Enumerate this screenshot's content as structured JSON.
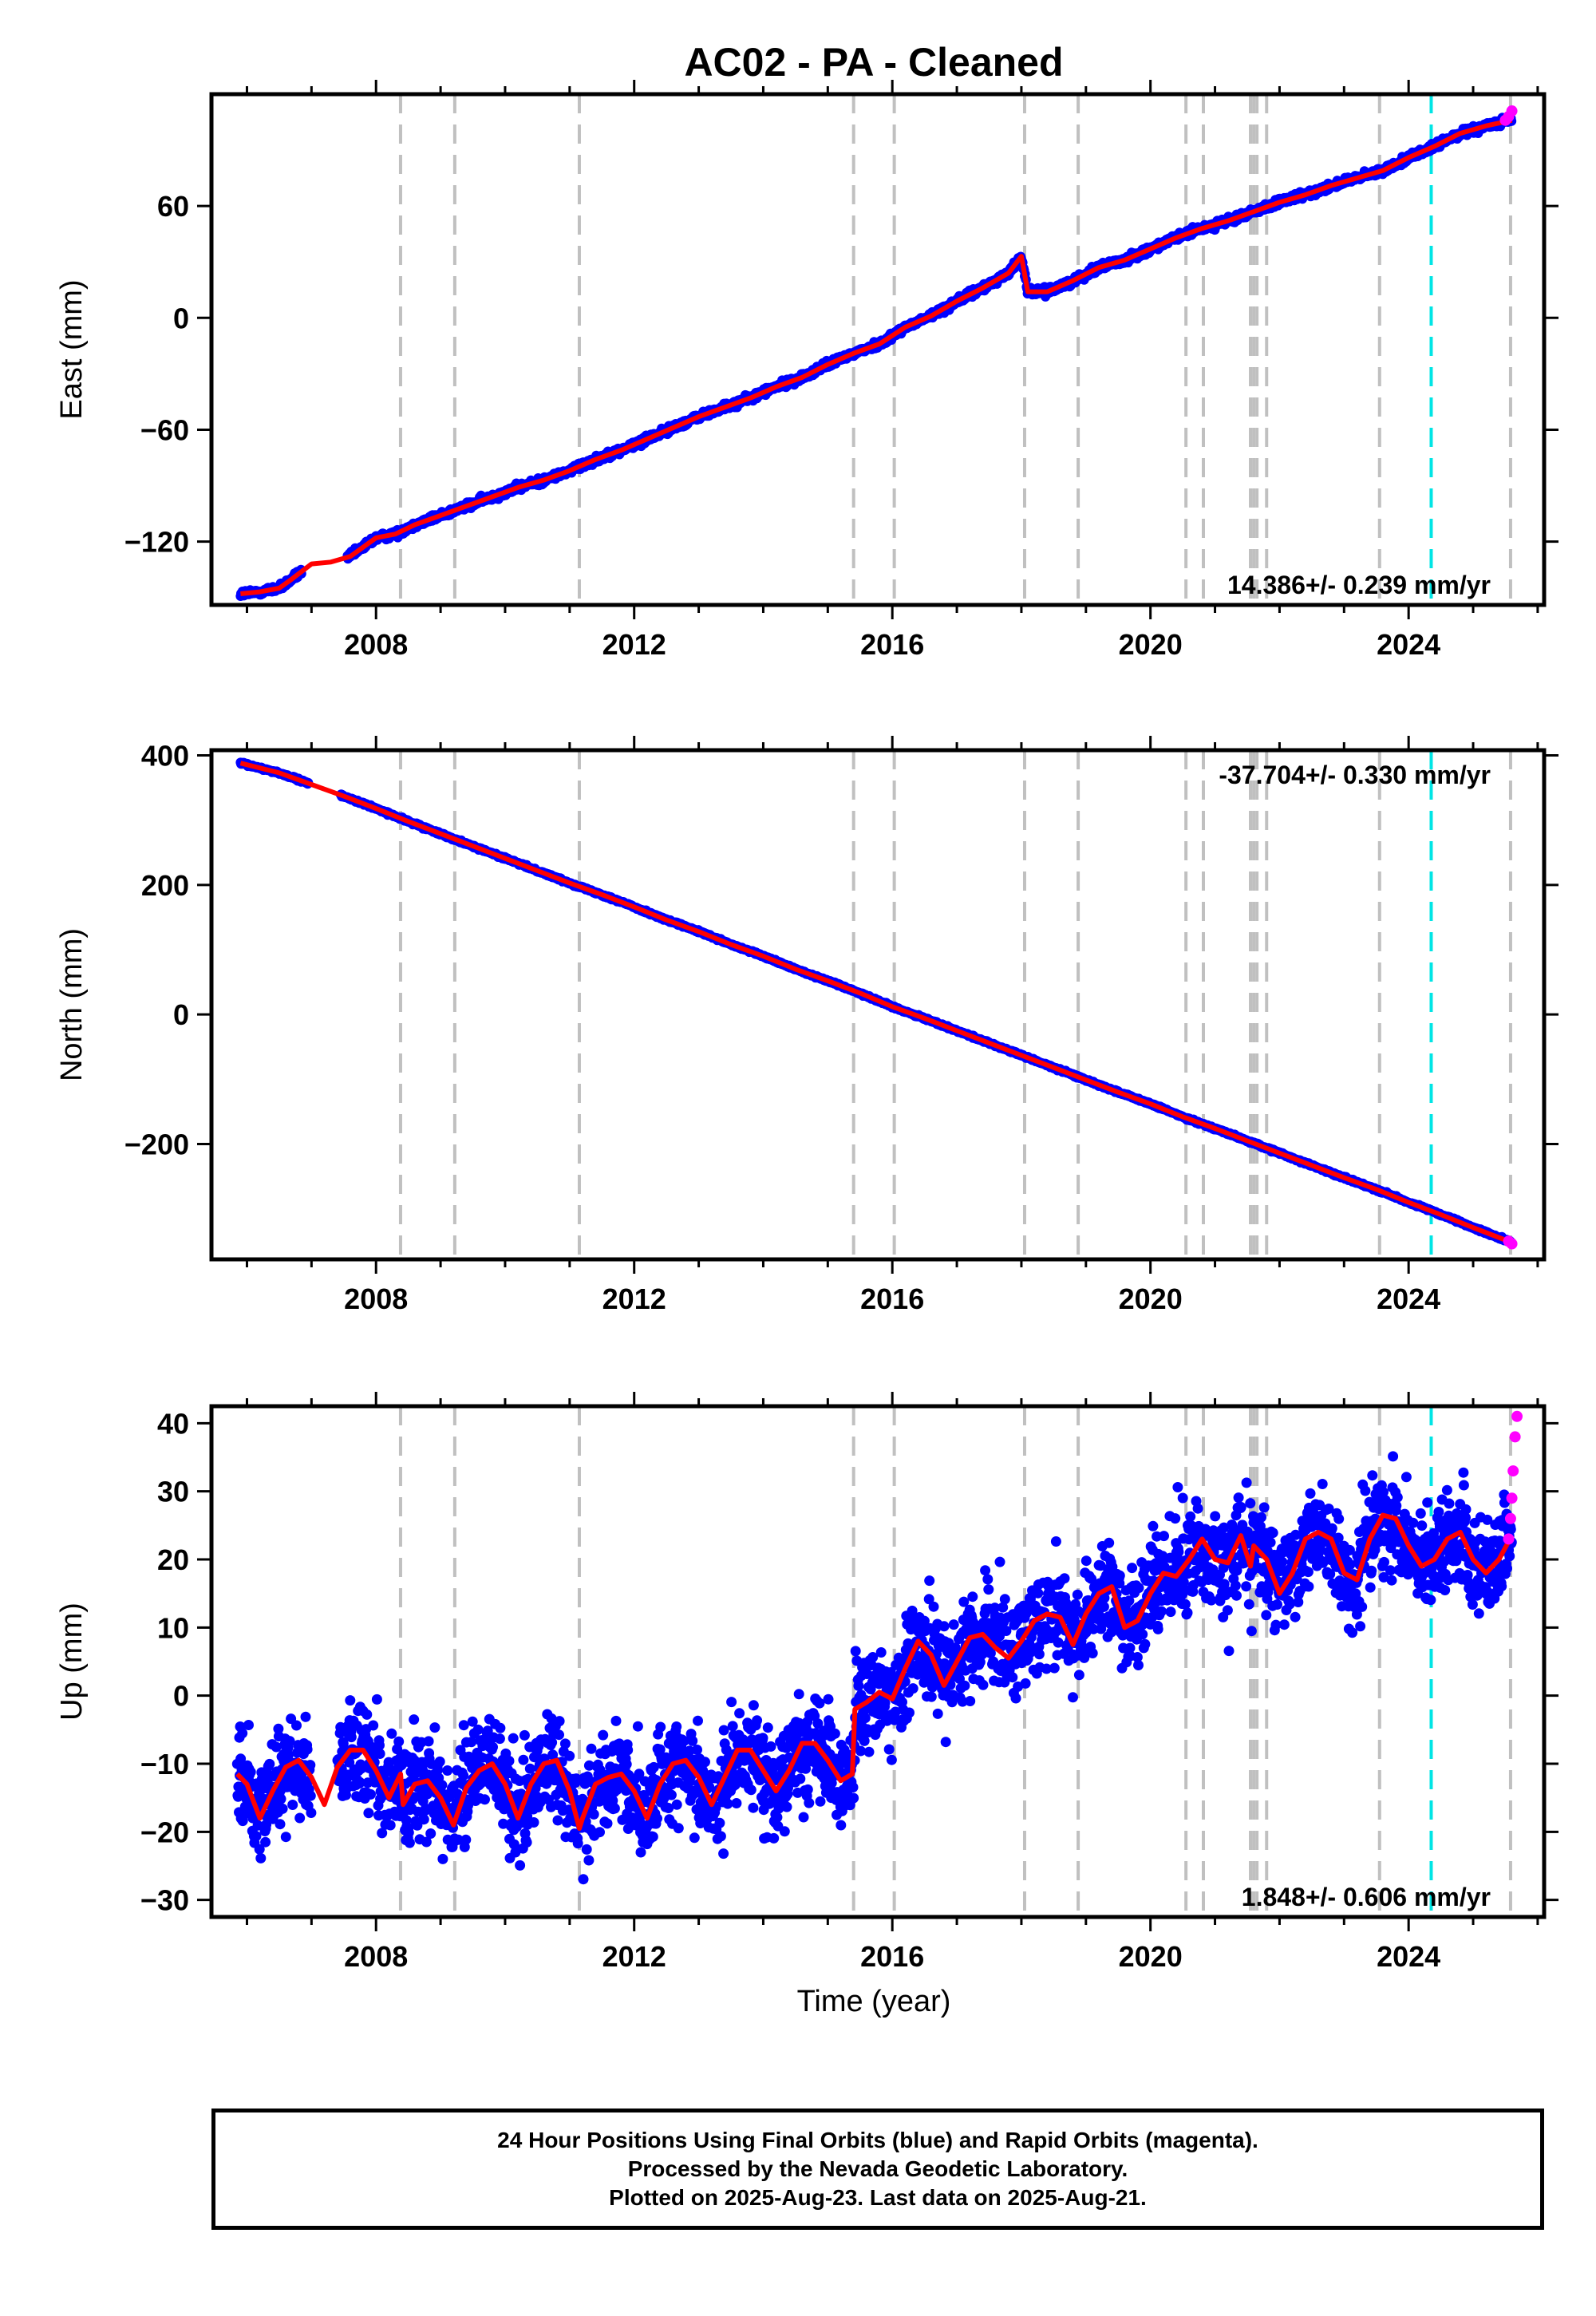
{
  "title": "AC02  - PA - Cleaned",
  "xlabel": "Time (year)",
  "colors": {
    "final_points": "#0000ff",
    "rapid_points": "#ff00ff",
    "model_line": "#ff0000",
    "step_line": "#c0c0c0",
    "equipment_line": "#00e5e5",
    "frame": "#000000"
  },
  "chart_data": [
    {
      "type": "scatter",
      "ylabel": "East (mm)",
      "rate_label": "14.386+/- 0.239 mm/yr",
      "rate_position": "bottom-right",
      "xlim": [
        2005.45,
        2026.1
      ],
      "ylim": [
        -154,
        120
      ],
      "xticks": [
        2008,
        2012,
        2016,
        2020,
        2024
      ],
      "yticks": [
        -120,
        -60,
        0,
        60
      ],
      "noise": 3,
      "series": [
        {
          "x": [
            2005.9,
            2006.2,
            2006.5,
            2006.7,
            2007.0,
            2007.3,
            2007.6,
            2008.0,
            2008.3,
            2008.6,
            2009.0,
            2009.4,
            2009.8,
            2010.2,
            2010.6,
            2011.0,
            2011.4,
            2011.8,
            2012.2,
            2012.6,
            2013.0,
            2013.4,
            2013.8,
            2014.2,
            2014.6,
            2015.0,
            2015.4,
            2015.8,
            2016.2,
            2016.6,
            2017.0,
            2017.4,
            2017.8,
            2018.0,
            2018.1,
            2018.4,
            2018.8,
            2019.2,
            2019.6,
            2020.0,
            2020.4,
            2020.8,
            2021.2,
            2021.6,
            2022.0,
            2022.4,
            2022.8,
            2023.2,
            2023.6,
            2024.0,
            2024.4,
            2024.8,
            2025.2,
            2025.6
          ],
          "y": [
            -148,
            -147,
            -145,
            -140,
            -132,
            -131,
            -128,
            -118,
            -116,
            -111,
            -106,
            -101,
            -96,
            -91,
            -87,
            -82,
            -76,
            -71,
            -65,
            -59,
            -53,
            -48,
            -43,
            -37,
            -32,
            -25,
            -19,
            -14,
            -5,
            1,
            9,
            16,
            24,
            33,
            14,
            14,
            20,
            27,
            31,
            37,
            43,
            48,
            52,
            57,
            62,
            66,
            71,
            75,
            79,
            86,
            92,
            99,
            103,
            106
          ]
        }
      ],
      "rapid": {
        "x": [
          2025.5,
          2025.55,
          2025.6
        ],
        "y": [
          106,
          108,
          111
        ]
      }
    },
    {
      "type": "scatter",
      "ylabel": "North (mm)",
      "rate_label": "-37.704+/- 0.330 mm/yr",
      "rate_position": "top-right",
      "xlim": [
        2005.45,
        2026.1
      ],
      "ylim": [
        -378,
        408
      ],
      "xticks": [
        2008,
        2012,
        2016,
        2020,
        2024
      ],
      "yticks": [
        -200,
        0,
        200,
        400
      ],
      "noise": 3,
      "series": [
        {
          "x": [
            2005.9,
            2006.5,
            2007.0,
            2007.5,
            2008.0,
            2008.5,
            2009.0,
            2009.5,
            2010.0,
            2010.5,
            2011.0,
            2011.5,
            2012.0,
            2012.5,
            2013.0,
            2013.5,
            2014.0,
            2014.5,
            2015.0,
            2015.5,
            2016.0,
            2016.5,
            2017.0,
            2017.5,
            2018.0,
            2018.5,
            2019.0,
            2019.5,
            2020.0,
            2020.5,
            2021.0,
            2021.5,
            2022.0,
            2022.5,
            2023.0,
            2023.5,
            2024.0,
            2024.5,
            2025.0,
            2025.6
          ],
          "y": [
            388,
            373,
            355,
            337,
            318,
            298,
            279,
            260,
            241,
            222,
            203,
            185,
            166,
            146,
            128,
            108,
            90,
            70,
            52,
            33,
            12,
            -6,
            -25,
            -44,
            -63,
            -82,
            -101,
            -120,
            -138,
            -158,
            -176,
            -195,
            -214,
            -233,
            -252,
            -270,
            -290,
            -309,
            -329,
            -352
          ]
        }
      ],
      "rapid": {
        "x": [
          2025.55,
          2025.6
        ],
        "y": [
          -350,
          -354
        ]
      }
    },
    {
      "type": "scatter",
      "ylabel": "Up (mm)",
      "rate_label": "1.848+/- 0.606 mm/yr",
      "rate_position": "bottom-right",
      "xlim": [
        2005.45,
        2026.1
      ],
      "ylim": [
        -32.5,
        42.5
      ],
      "xticks": [
        2008,
        2012,
        2016,
        2020,
        2024
      ],
      "yticks": [
        -30,
        -20,
        -10,
        0,
        10,
        20,
        30,
        40
      ],
      "noise": 11,
      "series": [
        {
          "x": [
            2005.85,
            2006.0,
            2006.2,
            2006.4,
            2006.6,
            2006.8,
            2007.0,
            2007.2,
            2007.4,
            2007.6,
            2007.8,
            2008.0,
            2008.2,
            2008.38,
            2008.42,
            2008.6,
            2008.8,
            2009.0,
            2009.2,
            2009.4,
            2009.6,
            2009.8,
            2010.0,
            2010.2,
            2010.4,
            2010.6,
            2010.8,
            2011.0,
            2011.15,
            2011.2,
            2011.4,
            2011.6,
            2011.8,
            2012.0,
            2012.2,
            2012.4,
            2012.6,
            2012.8,
            2013.0,
            2013.2,
            2013.4,
            2013.6,
            2013.8,
            2014.0,
            2014.2,
            2014.4,
            2014.6,
            2014.8,
            2015.0,
            2015.2,
            2015.38,
            2015.42,
            2015.6,
            2015.8,
            2016.0,
            2016.2,
            2016.4,
            2016.6,
            2016.8,
            2017.0,
            2017.2,
            2017.4,
            2017.6,
            2017.8,
            2018.0,
            2018.2,
            2018.4,
            2018.6,
            2018.8,
            2019.0,
            2019.2,
            2019.4,
            2019.6,
            2019.8,
            2020.0,
            2020.2,
            2020.4,
            2020.6,
            2020.8,
            2021.0,
            2021.2,
            2021.4,
            2021.55,
            2021.6,
            2021.8,
            2022.0,
            2022.2,
            2022.4,
            2022.6,
            2022.8,
            2023.0,
            2023.2,
            2023.4,
            2023.6,
            2023.8,
            2024.0,
            2024.2,
            2024.4,
            2024.6,
            2024.8,
            2025.0,
            2025.2,
            2025.4,
            2025.6
          ],
          "y": [
            -11.5,
            -13,
            -18,
            -14,
            -10.5,
            -9.5,
            -12,
            -16,
            -10.5,
            -8,
            -8,
            -11,
            -15,
            -11.5,
            -16,
            -13,
            -12.5,
            -15,
            -19,
            -13.5,
            -11,
            -10,
            -13,
            -18,
            -13,
            -10,
            -9.5,
            -14,
            -19.5,
            -18,
            -13,
            -12,
            -11.5,
            -14,
            -18,
            -13,
            -10,
            -9.5,
            -12,
            -16,
            -12,
            -8,
            -8,
            -11,
            -14,
            -11,
            -7,
            -7,
            -9.5,
            -12.5,
            -11.5,
            -2,
            -1,
            0.5,
            -0.5,
            4,
            8,
            6,
            1.5,
            5,
            8.5,
            9,
            7,
            5.5,
            8,
            11,
            12,
            11.5,
            7.5,
            12,
            15,
            16,
            10,
            11,
            15,
            18,
            17.5,
            20,
            23,
            20,
            19.5,
            23.5,
            19,
            22,
            20,
            15,
            18,
            23,
            24,
            23,
            18,
            17,
            23,
            26.5,
            26,
            22,
            19,
            20,
            23,
            24,
            20,
            18,
            20,
            23.5
          ]
        }
      ],
      "rapid": {
        "x": [
          2025.55,
          2025.58,
          2025.6,
          2025.62,
          2025.65,
          2025.68
        ],
        "y": [
          23,
          26,
          29,
          33,
          38,
          41
        ]
      }
    }
  ],
  "breaks": {
    "steps": [
      2008.38,
      2009.22,
      2011.15,
      2015.4,
      2016.03,
      2018.05,
      2018.88,
      2020.55,
      2020.82,
      2021.55,
      2021.6,
      2021.65,
      2021.8,
      2023.55,
      2025.58
    ],
    "equipment": [
      2024.35
    ]
  },
  "notes": [
    "24 Hour Positions Using Final Orbits (blue) and Rapid Orbits (magenta).",
    "Processed by the Nevada Geodetic Laboratory.",
    "Plotted on 2025-Aug-23. Last data on 2025-Aug-21."
  ]
}
